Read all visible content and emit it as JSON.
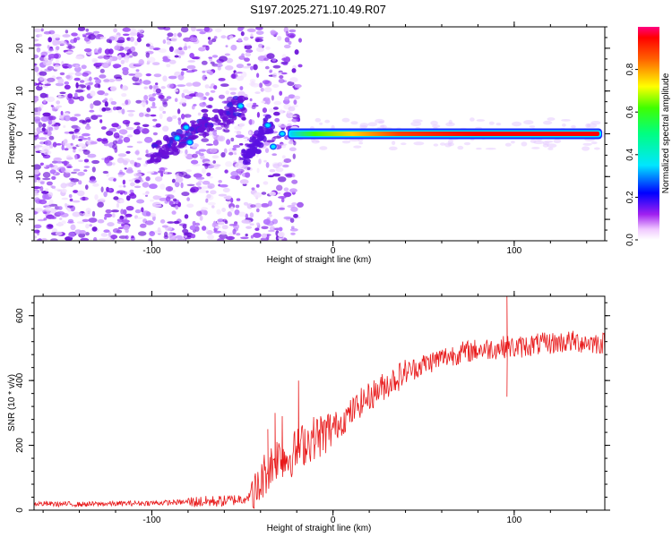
{
  "title": "S197.2025.271.10.49.R07",
  "chart_data": [
    {
      "type": "heatmap",
      "xlabel": "Height of straight line (km)",
      "ylabel": "Frequency (Hz)",
      "xlim": [
        -165,
        150
      ],
      "ylim": [
        -25,
        25
      ],
      "x_ticks": [
        -100,
        0,
        100
      ],
      "y_ticks": [
        -20,
        -10,
        0,
        10,
        20
      ],
      "colorbar": {
        "label": "Normalized spectral amplitude",
        "range": [
          0,
          1
        ],
        "ticks": [
          "0.0",
          "0.2",
          "0.4",
          "0.6",
          "0.8"
        ],
        "tick_values": [
          0.0,
          0.2,
          0.4,
          0.6,
          0.8
        ]
      },
      "features": {
        "noise_region_km": [
          -165,
          -30
        ],
        "diagonal_trend": {
          "from": [
            -100,
            -5
          ],
          "to": [
            -50,
            7
          ]
        },
        "secondary_cluster": {
          "from": [
            -48,
            -6
          ],
          "to": [
            -35,
            3
          ]
        },
        "steady_line": {
          "from_km": -25,
          "to_km": 150,
          "frequency_hz": 0
        }
      }
    },
    {
      "type": "line",
      "xlabel": "Height of straight line (km)",
      "ylabel": "SNR (10 * v/v)",
      "xlim": [
        -165,
        150
      ],
      "ylim": [
        0,
        660
      ],
      "x_ticks": [
        -100,
        0,
        100
      ],
      "y_ticks": [
        0,
        200,
        400,
        600
      ],
      "series": [
        {
          "name": "SNR",
          "color": "#e8191a",
          "x": [
            -165,
            -140,
            -120,
            -100,
            -80,
            -60,
            -50,
            -42,
            -38,
            -34,
            -30,
            -25,
            -20,
            -15,
            -10,
            -5,
            0,
            5,
            10,
            15,
            20,
            25,
            30,
            40,
            50,
            60,
            70,
            80,
            90,
            96,
            100,
            110,
            120,
            130,
            140,
            150
          ],
          "y": [
            20,
            18,
            20,
            22,
            25,
            28,
            35,
            55,
            110,
            140,
            170,
            160,
            185,
            210,
            225,
            235,
            255,
            275,
            300,
            330,
            350,
            370,
            390,
            425,
            450,
            470,
            485,
            495,
            500,
            505,
            500,
            510,
            515,
            520,
            518,
            515
          ],
          "spikes": [
            [
              -36,
              250
            ],
            [
              -32,
              300
            ],
            [
              -28,
              290
            ],
            [
              -19,
              400
            ],
            [
              96,
              660
            ],
            [
              96,
              350
            ]
          ]
        }
      ]
    }
  ],
  "colors": {
    "line": "#e8191a",
    "axis": "#000000"
  }
}
